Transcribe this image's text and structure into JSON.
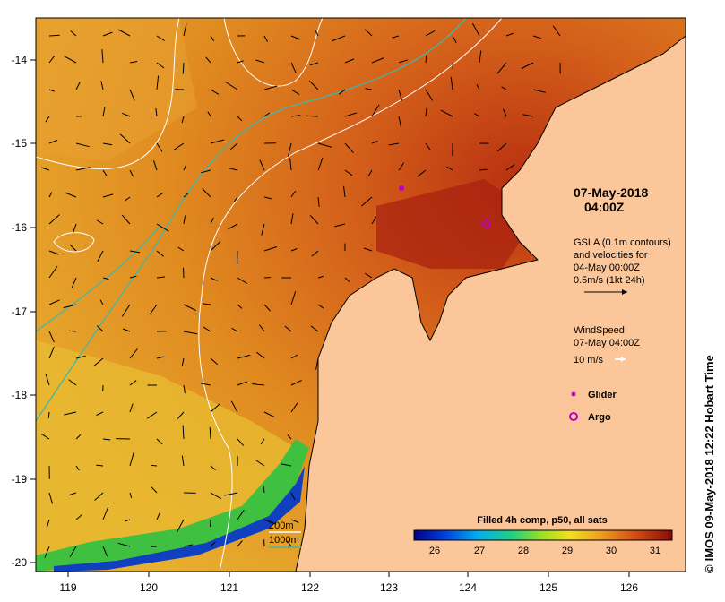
{
  "map": {
    "x_ticks": [
      "119",
      "120",
      "121",
      "122",
      "123",
      "124",
      "125",
      "126"
    ],
    "y_ticks": [
      "-14",
      "-15",
      "-16",
      "-17",
      "-18",
      "-19",
      "-20"
    ]
  },
  "annotation": {
    "date_line1": "07-May-2018",
    "date_line2": "04:00Z"
  },
  "gsla_legend": {
    "line1": "GSLA (0.1m contours)",
    "line2": "and velocities for",
    "line3": "04-May 00:00Z",
    "line4": "0.5m/s (1kt 24h)"
  },
  "wind_legend": {
    "line1": "WindSpeed",
    "line2": "07-May 04:00Z",
    "line3": "10 m/s"
  },
  "markers": {
    "glider_label": "Glider",
    "argo_label": "Argo"
  },
  "depth_legend": {
    "line1": "200m",
    "line2": "1000m"
  },
  "colorbar": {
    "title": "Filled 4h comp, p50, all sats",
    "ticks": [
      "26",
      "27",
      "28",
      "29",
      "30",
      "31"
    ]
  },
  "copyright": {
    "symbol": "©",
    "text": "IMOS 09-May-2018 12:22 Hobart Time"
  },
  "colors": {
    "land": "#fbc69a",
    "sst_warm": "#d45a10",
    "sst_hot": "#9a1a0a",
    "sst_mid": "#e8a020",
    "contour_200m": "#ffffff",
    "contour_1000m": "#3fb8a8",
    "glider": "#c000c0",
    "argo": "#c000c0"
  }
}
